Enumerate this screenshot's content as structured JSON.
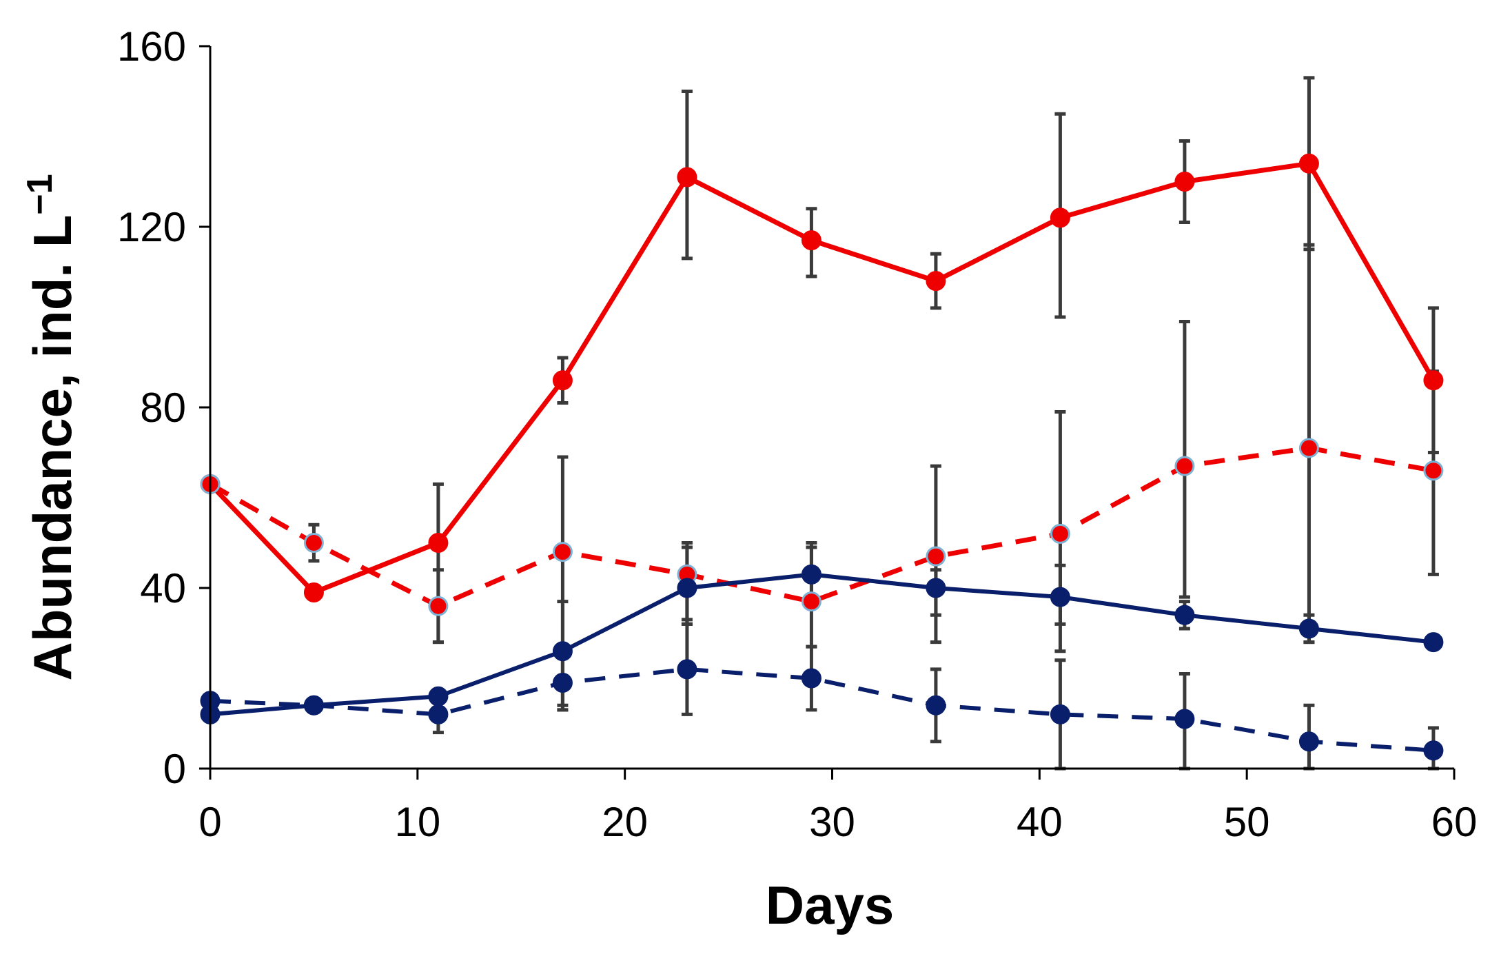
{
  "chart_data": {
    "type": "line",
    "title": "",
    "xlabel": "Days",
    "ylabel_main": "Abundance, ind. L",
    "ylabel_sup": "−1",
    "xlim": [
      0,
      60
    ],
    "ylim": [
      0,
      160
    ],
    "xticks": [
      0,
      10,
      20,
      30,
      40,
      50,
      60
    ],
    "yticks": [
      0,
      40,
      80,
      120,
      160
    ],
    "x_tick_labels": [
      "0",
      "10",
      "20",
      "30",
      "40",
      "50",
      "60"
    ],
    "y_tick_labels": [
      "0",
      "40",
      "80",
      "120",
      "160"
    ],
    "grid": false,
    "legend": "none",
    "series": [
      {
        "name": "red-solid",
        "color": "#ee0000",
        "dash": "solid",
        "marker_stroke": "#ee0000",
        "x": [
          0,
          5,
          11,
          17,
          23,
          29,
          35,
          41,
          47,
          53,
          59
        ],
        "values": [
          63,
          39,
          50,
          86,
          131,
          117,
          108,
          122,
          130,
          134,
          86
        ],
        "err_low": [
          63,
          39,
          28,
          81,
          113,
          109,
          102,
          100,
          121,
          115,
          70
        ],
        "err_high": [
          63,
          39,
          63,
          91,
          150,
          124,
          114,
          145,
          139,
          153,
          102
        ]
      },
      {
        "name": "red-dashed",
        "color": "#ee0000",
        "dash": "dashed",
        "marker_stroke": "#7fb3d5",
        "x": [
          0,
          5,
          11,
          17,
          23,
          29,
          35,
          41,
          47,
          53,
          59
        ],
        "values": [
          63,
          50,
          36,
          48,
          43,
          37,
          47,
          52,
          67,
          71,
          66
        ],
        "err_low": [
          63,
          46,
          28,
          13,
          32,
          27,
          28,
          26,
          38,
          28,
          43
        ],
        "err_high": [
          63,
          54,
          44,
          69,
          49,
          49,
          67,
          79,
          99,
          116,
          88
        ]
      },
      {
        "name": "navy-solid",
        "color": "#0a1f6b",
        "dash": "solid",
        "marker_stroke": "#0a1f6b",
        "x": [
          0,
          5,
          11,
          17,
          23,
          29,
          35,
          41,
          47,
          53,
          59
        ],
        "values": [
          12,
          14,
          16,
          26,
          40,
          43,
          40,
          38,
          34,
          31,
          28
        ],
        "err_low": [
          12,
          14,
          16,
          14,
          32,
          37,
          34,
          32,
          31,
          28,
          28
        ],
        "err_high": [
          12,
          14,
          16,
          37,
          50,
          50,
          44,
          45,
          37,
          34,
          28
        ]
      },
      {
        "name": "navy-dashed",
        "color": "#0a1f6b",
        "dash": "dashed",
        "marker_stroke": "#0a1f6b",
        "x": [
          0,
          5,
          11,
          17,
          23,
          29,
          35,
          41,
          47,
          53,
          59
        ],
        "values": [
          15,
          14,
          12,
          19,
          22,
          20,
          14,
          12,
          11,
          6,
          4
        ],
        "err_low": [
          15,
          14,
          8,
          13,
          12,
          13,
          6,
          0,
          0,
          0,
          0
        ],
        "err_high": [
          15,
          14,
          16,
          25,
          33,
          27,
          22,
          24,
          21,
          14,
          9
        ]
      }
    ]
  }
}
